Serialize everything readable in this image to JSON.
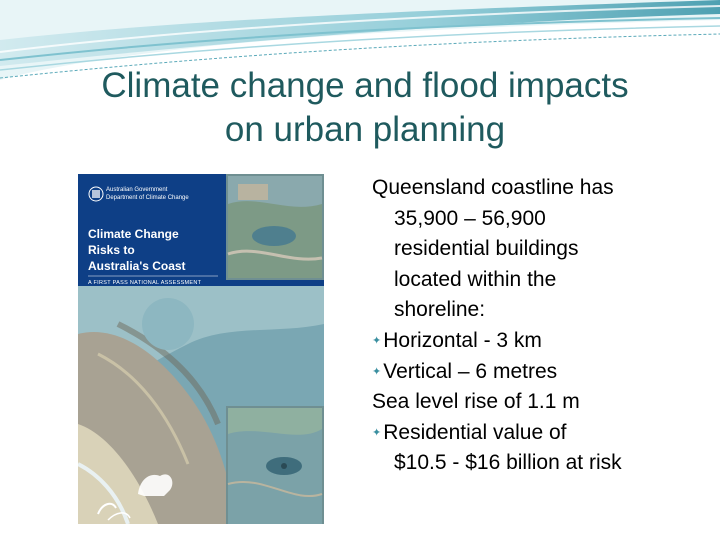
{
  "slide": {
    "title_line1": "Climate change and flood impacts",
    "title_line2": "on urban planning",
    "accent": "#1f5a5e",
    "bullet_icon": "four-point-star-icon"
  },
  "report_cover": {
    "gov_line1": "Australian Government",
    "gov_line2": "Department of Climate Change",
    "title_line1": "Climate Change",
    "title_line2": "Risks to",
    "title_line3": "Australia's Coast",
    "subtitle": "A FIRST PASS NATIONAL ASSESSMENT",
    "background": "#0e3f86"
  },
  "body": {
    "lines": [
      "Queensland coastline has",
      "35,900 – 56,900",
      "residential buildings",
      "located within the",
      "shoreline:",
      "Horizontal - 3 km",
      "Vertical – 6 metres",
      "Sea level rise of 1.1 m",
      "Residential value of",
      "$10.5 - $16 billion at risk"
    ]
  }
}
